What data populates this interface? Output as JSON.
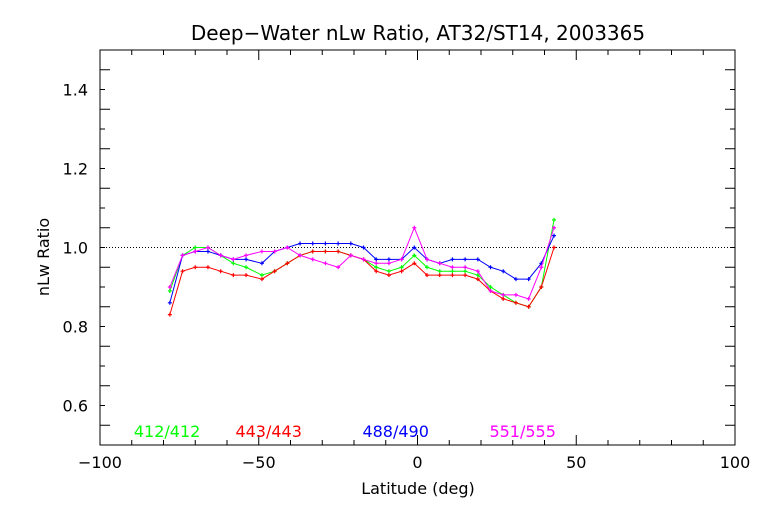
{
  "chart_data": {
    "type": "line",
    "title": "Deep−Water nLw Ratio, AT32/ST14, 2003365",
    "xlabel": "Latitude (deg)",
    "ylabel": "nLw Ratio",
    "xlim": [
      -100,
      100
    ],
    "ylim": [
      0.5,
      1.5
    ],
    "x_ticks": [
      -100,
      -50,
      0,
      50,
      100
    ],
    "x_tick_labels": [
      "−100",
      "−50",
      "0",
      "50",
      "100"
    ],
    "y_ticks": [
      0.6,
      0.8,
      1.0,
      1.2,
      1.4
    ],
    "y_tick_labels": [
      "0.6",
      "0.8",
      "1.0",
      "1.2",
      "1.4"
    ],
    "reference_line": 1.0,
    "grid": false,
    "x": [
      -78,
      -74,
      -70,
      -66,
      -62,
      -58,
      -54,
      -49,
      -45,
      -41,
      -37,
      -33,
      -29,
      -25,
      -21,
      -17,
      -13,
      -9,
      -5,
      -1,
      3,
      7,
      11,
      15,
      19,
      23,
      27,
      31,
      35,
      39,
      43
    ],
    "series": [
      {
        "name": "412/412",
        "color": "#00ff00",
        "values": [
          0.89,
          0.98,
          1.0,
          1.0,
          0.98,
          0.96,
          0.95,
          0.93,
          0.94,
          0.96,
          0.98,
          0.99,
          0.99,
          0.99,
          0.98,
          0.97,
          0.95,
          0.94,
          0.95,
          0.98,
          0.95,
          0.94,
          0.94,
          0.94,
          0.93,
          0.9,
          0.88,
          0.86,
          0.85,
          0.9,
          1.07
        ]
      },
      {
        "name": "443/443",
        "color": "#ff0000",
        "values": [
          0.83,
          0.94,
          0.95,
          0.95,
          0.94,
          0.93,
          0.93,
          0.92,
          0.94,
          0.96,
          0.98,
          0.99,
          0.99,
          0.99,
          0.98,
          0.97,
          0.94,
          0.93,
          0.94,
          0.96,
          0.93,
          0.93,
          0.93,
          0.93,
          0.92,
          0.89,
          0.87,
          0.86,
          0.85,
          0.9,
          1.0
        ]
      },
      {
        "name": "488/490",
        "color": "#0000ff",
        "values": [
          0.86,
          0.98,
          0.99,
          0.99,
          0.98,
          0.97,
          0.97,
          0.96,
          0.99,
          1.0,
          1.01,
          1.01,
          1.01,
          1.01,
          1.01,
          1.0,
          0.97,
          0.97,
          0.97,
          1.0,
          0.97,
          0.96,
          0.97,
          0.97,
          0.97,
          0.95,
          0.94,
          0.92,
          0.92,
          0.96,
          1.03
        ]
      },
      {
        "name": "551/555",
        "color": "#ff00ff",
        "values": [
          0.9,
          0.98,
          0.99,
          1.0,
          0.98,
          0.97,
          0.98,
          0.99,
          0.99,
          1.0,
          0.98,
          0.97,
          0.96,
          0.95,
          0.98,
          0.97,
          0.96,
          0.96,
          0.97,
          1.05,
          0.97,
          0.96,
          0.95,
          0.95,
          0.94,
          0.89,
          0.88,
          0.88,
          0.87,
          0.95,
          1.05
        ]
      }
    ]
  }
}
